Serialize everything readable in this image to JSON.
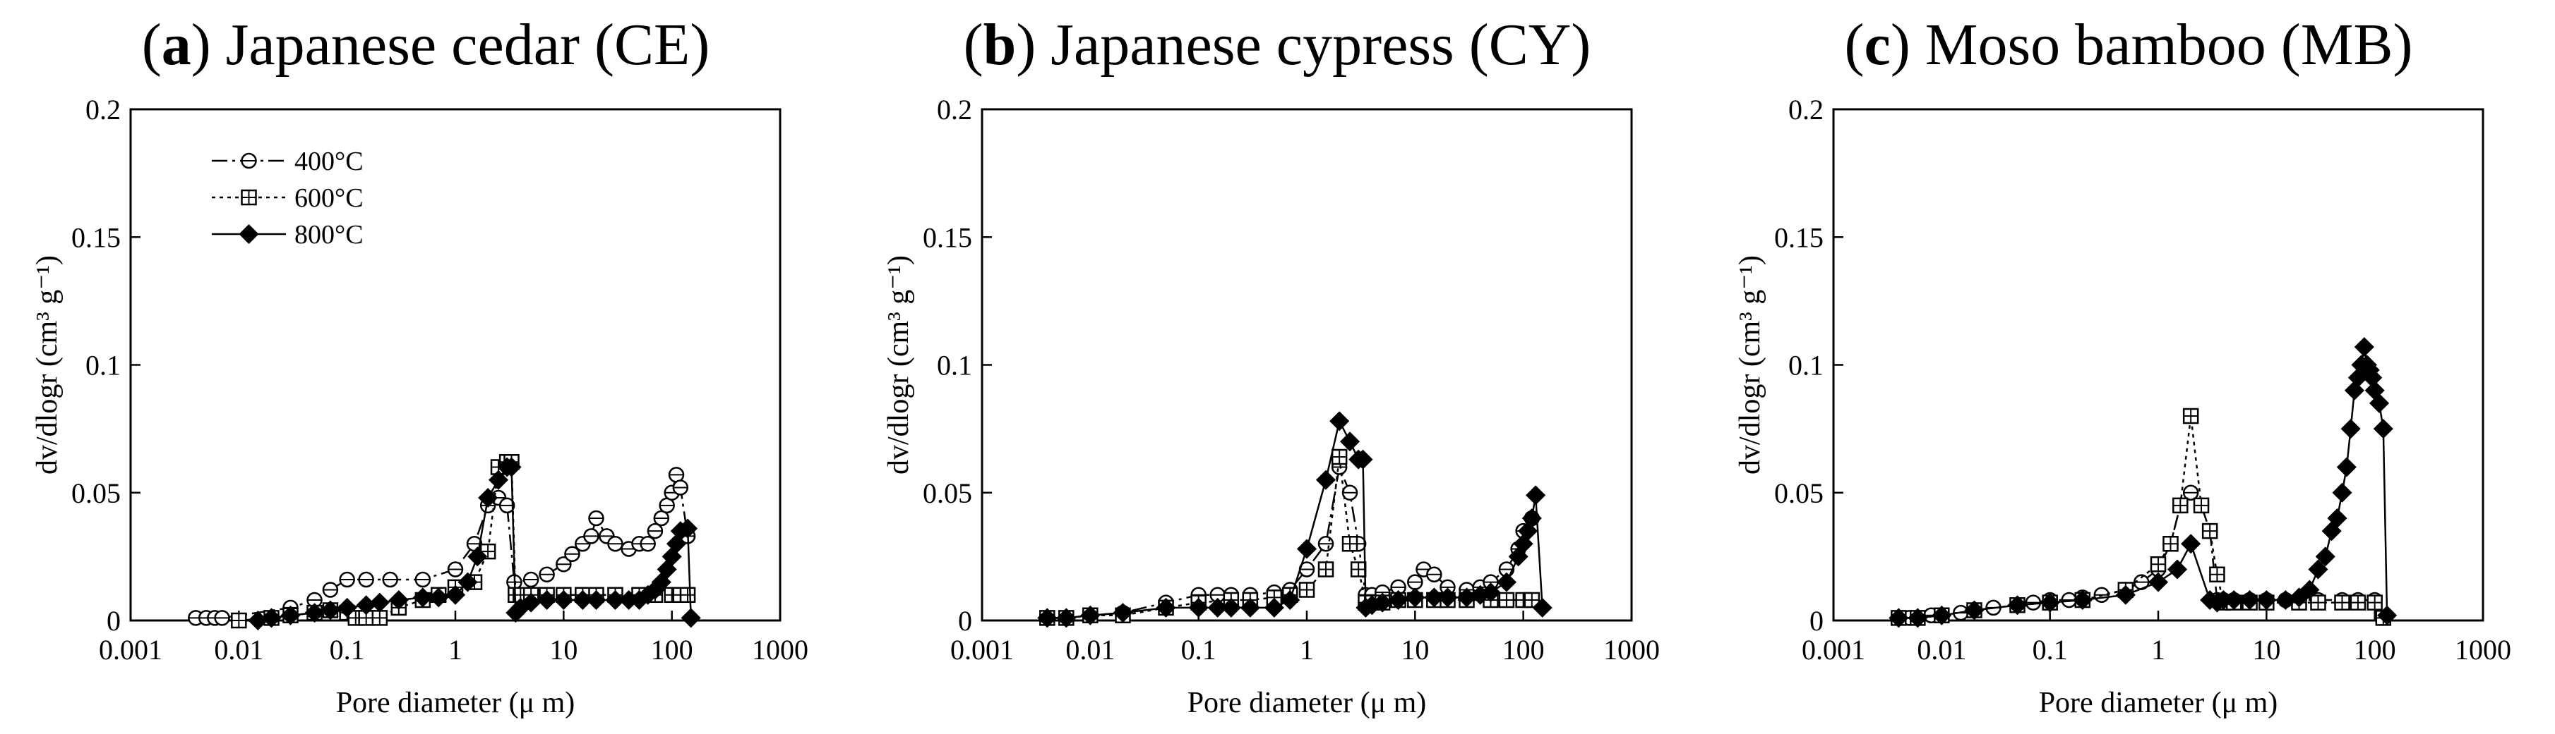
{
  "chart_data": [
    {
      "type": "line",
      "panel_letter": "a",
      "title": "Japanese cedar (CE)",
      "xlabel": "Pore diameter",
      "xlabel_unit": "μ m",
      "ylabel": "dv/dlogr (cm³ g⁻¹)",
      "x_scale": "log",
      "xlim": [
        0.001,
        1000
      ],
      "ylim": [
        0,
        0.2
      ],
      "x_ticks": [
        "0.001",
        "0.01",
        "0.1",
        "1",
        "10",
        "100",
        "1000"
      ],
      "y_ticks": [
        "0",
        "0.05",
        "0.1",
        "0.15",
        "0.2"
      ],
      "grid": false,
      "legend_position": "top-left",
      "series": [
        {
          "name": "400°C",
          "marker": "open-circle",
          "line": "dash-dot",
          "x": [
            0.004,
            0.005,
            0.006,
            0.007,
            0.03,
            0.05,
            0.07,
            0.1,
            0.15,
            0.25,
            0.5,
            1.0,
            1.5,
            2.0,
            2.5,
            3.0,
            3.5,
            5,
            7,
            10,
            12,
            15,
            18,
            20,
            25,
            30,
            40,
            50,
            60,
            70,
            80,
            90,
            100,
            110,
            120,
            140
          ],
          "y": [
            0.001,
            0.001,
            0.001,
            0.001,
            0.005,
            0.008,
            0.012,
            0.016,
            0.016,
            0.016,
            0.016,
            0.02,
            0.03,
            0.045,
            0.048,
            0.045,
            0.015,
            0.016,
            0.018,
            0.022,
            0.026,
            0.03,
            0.033,
            0.04,
            0.033,
            0.03,
            0.028,
            0.03,
            0.03,
            0.035,
            0.04,
            0.045,
            0.05,
            0.057,
            0.052,
            0.033
          ]
        },
        {
          "name": "600°C",
          "marker": "boxed-plus",
          "line": "dotted",
          "x": [
            0.01,
            0.02,
            0.03,
            0.05,
            0.07,
            0.1,
            0.12,
            0.15,
            0.2,
            0.3,
            0.5,
            0.7,
            1.0,
            1.5,
            2.0,
            2.5,
            3.0,
            3.3,
            3.6,
            4,
            5,
            7,
            10,
            15,
            20,
            30,
            50,
            70,
            100,
            120,
            140
          ],
          "y": [
            0,
            0.001,
            0.002,
            0.003,
            0.004,
            0.003,
            0.001,
            0.001,
            0.001,
            0.005,
            0.008,
            0.01,
            0.013,
            0.015,
            0.027,
            0.06,
            0.062,
            0.062,
            0.01,
            0.01,
            0.01,
            0.01,
            0.01,
            0.01,
            0.01,
            0.01,
            0.01,
            0.01,
            0.01,
            0.01,
            0.01
          ]
        },
        {
          "name": "800°C",
          "marker": "filled-diamond",
          "line": "solid",
          "x": [
            0.015,
            0.02,
            0.03,
            0.05,
            0.07,
            0.1,
            0.15,
            0.2,
            0.3,
            0.5,
            0.7,
            1.0,
            1.3,
            1.6,
            2.0,
            2.5,
            3.0,
            3.3,
            3.6,
            4,
            5,
            7,
            10,
            15,
            20,
            30,
            40,
            50,
            60,
            70,
            80,
            90,
            100,
            110,
            120,
            140,
            150
          ],
          "y": [
            0,
            0.001,
            0.002,
            0.003,
            0.004,
            0.005,
            0.006,
            0.007,
            0.008,
            0.009,
            0.009,
            0.01,
            0.015,
            0.025,
            0.048,
            0.055,
            0.06,
            0.06,
            0.003,
            0.005,
            0.007,
            0.008,
            0.008,
            0.008,
            0.008,
            0.008,
            0.008,
            0.008,
            0.01,
            0.012,
            0.015,
            0.02,
            0.025,
            0.03,
            0.035,
            0.036,
            0.001
          ]
        }
      ]
    },
    {
      "type": "line",
      "panel_letter": "b",
      "title": "Japanese cypress (CY)",
      "xlabel": "Pore diameter",
      "xlabel_unit": "μ m",
      "ylabel": "dv/dlogr (cm³ g⁻¹)",
      "x_scale": "log",
      "xlim": [
        0.001,
        1000
      ],
      "ylim": [
        0,
        0.2
      ],
      "x_ticks": [
        "0.001",
        "0.01",
        "0.1",
        "1",
        "10",
        "100",
        "1000"
      ],
      "y_ticks": [
        "0",
        "0.05",
        "0.1",
        "0.15",
        "0.2"
      ],
      "grid": false,
      "series": [
        {
          "name": "400°C",
          "marker": "open-circle",
          "line": "dash-dot",
          "x": [
            0.004,
            0.006,
            0.01,
            0.02,
            0.05,
            0.1,
            0.15,
            0.2,
            0.3,
            0.5,
            0.7,
            1.0,
            1.5,
            2.0,
            2.5,
            3.0,
            3.5,
            4,
            5,
            7,
            10,
            12,
            15,
            20,
            30,
            40,
            50,
            70,
            90,
            100,
            120
          ],
          "y": [
            0.001,
            0.001,
            0.002,
            0.003,
            0.007,
            0.01,
            0.01,
            0.01,
            0.01,
            0.011,
            0.012,
            0.02,
            0.03,
            0.06,
            0.05,
            0.03,
            0.01,
            0.01,
            0.011,
            0.013,
            0.015,
            0.02,
            0.018,
            0.013,
            0.012,
            0.013,
            0.015,
            0.02,
            0.028,
            0.035,
            0.04
          ]
        },
        {
          "name": "600°C",
          "marker": "boxed-plus",
          "line": "dotted",
          "x": [
            0.004,
            0.006,
            0.01,
            0.02,
            0.05,
            0.1,
            0.2,
            0.3,
            0.5,
            0.7,
            1.0,
            1.5,
            2.0,
            2.5,
            3.0,
            3.5,
            4,
            5,
            7,
            10,
            15,
            20,
            30,
            50,
            70,
            100,
            120
          ],
          "y": [
            0.001,
            0.001,
            0.002,
            0.002,
            0.005,
            0.007,
            0.008,
            0.008,
            0.009,
            0.01,
            0.012,
            0.02,
            0.064,
            0.03,
            0.02,
            0.007,
            0.007,
            0.007,
            0.008,
            0.008,
            0.008,
            0.008,
            0.008,
            0.008,
            0.008,
            0.008,
            0.008
          ]
        },
        {
          "name": "800°C",
          "marker": "filled-diamond",
          "line": "solid",
          "x": [
            0.004,
            0.006,
            0.01,
            0.02,
            0.05,
            0.1,
            0.15,
            0.2,
            0.3,
            0.5,
            0.7,
            1.0,
            1.5,
            2.0,
            2.5,
            3.0,
            3.3,
            3.5,
            4,
            5,
            7,
            10,
            15,
            20,
            30,
            40,
            50,
            70,
            90,
            100,
            110,
            120,
            130,
            150
          ],
          "y": [
            0.001,
            0.001,
            0.002,
            0.003,
            0.005,
            0.005,
            0.005,
            0.005,
            0.005,
            0.005,
            0.008,
            0.028,
            0.055,
            0.078,
            0.07,
            0.063,
            0.063,
            0.005,
            0.006,
            0.007,
            0.008,
            0.009,
            0.009,
            0.009,
            0.009,
            0.01,
            0.011,
            0.015,
            0.025,
            0.03,
            0.035,
            0.04,
            0.049,
            0.005
          ]
        }
      ]
    },
    {
      "type": "line",
      "panel_letter": "c",
      "title": "Moso bamboo (MB)",
      "xlabel": "Pore diameter",
      "xlabel_unit": "μ m",
      "ylabel": "dv/dlogr (cm³ g⁻¹)",
      "x_scale": "log",
      "xlim": [
        0.001,
        1000
      ],
      "ylim": [
        0,
        0.2
      ],
      "x_ticks": [
        "0.001",
        "0.01",
        "0.1",
        "1",
        "10",
        "100",
        "1000"
      ],
      "y_ticks": [
        "0",
        "0.05",
        "0.1",
        "0.15",
        "0.2"
      ],
      "grid": false,
      "series": [
        {
          "name": "400°C",
          "marker": "open-circle",
          "line": "dash-dot",
          "x": [
            0.004,
            0.005,
            0.006,
            0.008,
            0.01,
            0.015,
            0.02,
            0.03,
            0.05,
            0.07,
            0.1,
            0.15,
            0.2,
            0.3,
            0.5,
            0.7,
            1.0,
            1.3,
            1.6,
            2.0,
            2.5,
            3.0,
            3.5,
            4,
            5,
            7,
            10,
            15,
            20,
            30,
            50,
            70,
            100,
            120
          ],
          "y": [
            0.001,
            0.001,
            0.001,
            0.002,
            0.002,
            0.003,
            0.004,
            0.005,
            0.006,
            0.007,
            0.008,
            0.008,
            0.009,
            0.01,
            0.012,
            0.015,
            0.02,
            0.03,
            0.045,
            0.05,
            0.045,
            0.035,
            0.008,
            0.008,
            0.008,
            0.008,
            0.008,
            0.008,
            0.008,
            0.008,
            0.008,
            0.008,
            0.008,
            0.001
          ]
        },
        {
          "name": "600°C",
          "marker": "boxed-plus",
          "line": "dotted",
          "x": [
            0.004,
            0.006,
            0.01,
            0.02,
            0.05,
            0.1,
            0.2,
            0.5,
            1.0,
            1.3,
            1.6,
            2.0,
            2.5,
            3.0,
            3.5,
            4,
            5,
            7,
            10,
            20,
            30,
            50,
            70,
            100,
            120
          ],
          "y": [
            0.001,
            0.001,
            0.002,
            0.004,
            0.006,
            0.007,
            0.008,
            0.012,
            0.022,
            0.03,
            0.045,
            0.08,
            0.045,
            0.035,
            0.018,
            0.007,
            0.007,
            0.007,
            0.007,
            0.007,
            0.007,
            0.007,
            0.007,
            0.007,
            0.001
          ]
        },
        {
          "name": "800°C",
          "marker": "filled-diamond",
          "line": "solid",
          "x": [
            0.004,
            0.006,
            0.01,
            0.02,
            0.05,
            0.1,
            0.2,
            0.5,
            1.0,
            1.5,
            2.0,
            3.0,
            3.5,
            4,
            5,
            7,
            10,
            15,
            20,
            25,
            30,
            35,
            40,
            45,
            50,
            55,
            60,
            65,
            70,
            75,
            80,
            85,
            90,
            95,
            100,
            110,
            120,
            130
          ],
          "y": [
            0.001,
            0.001,
            0.002,
            0.004,
            0.006,
            0.007,
            0.008,
            0.01,
            0.015,
            0.02,
            0.03,
            0.008,
            0.007,
            0.008,
            0.008,
            0.008,
            0.008,
            0.008,
            0.009,
            0.012,
            0.02,
            0.025,
            0.035,
            0.04,
            0.05,
            0.06,
            0.075,
            0.09,
            0.095,
            0.1,
            0.107,
            0.1,
            0.098,
            0.095,
            0.09,
            0.085,
            0.075,
            0.002
          ]
        }
      ]
    }
  ]
}
